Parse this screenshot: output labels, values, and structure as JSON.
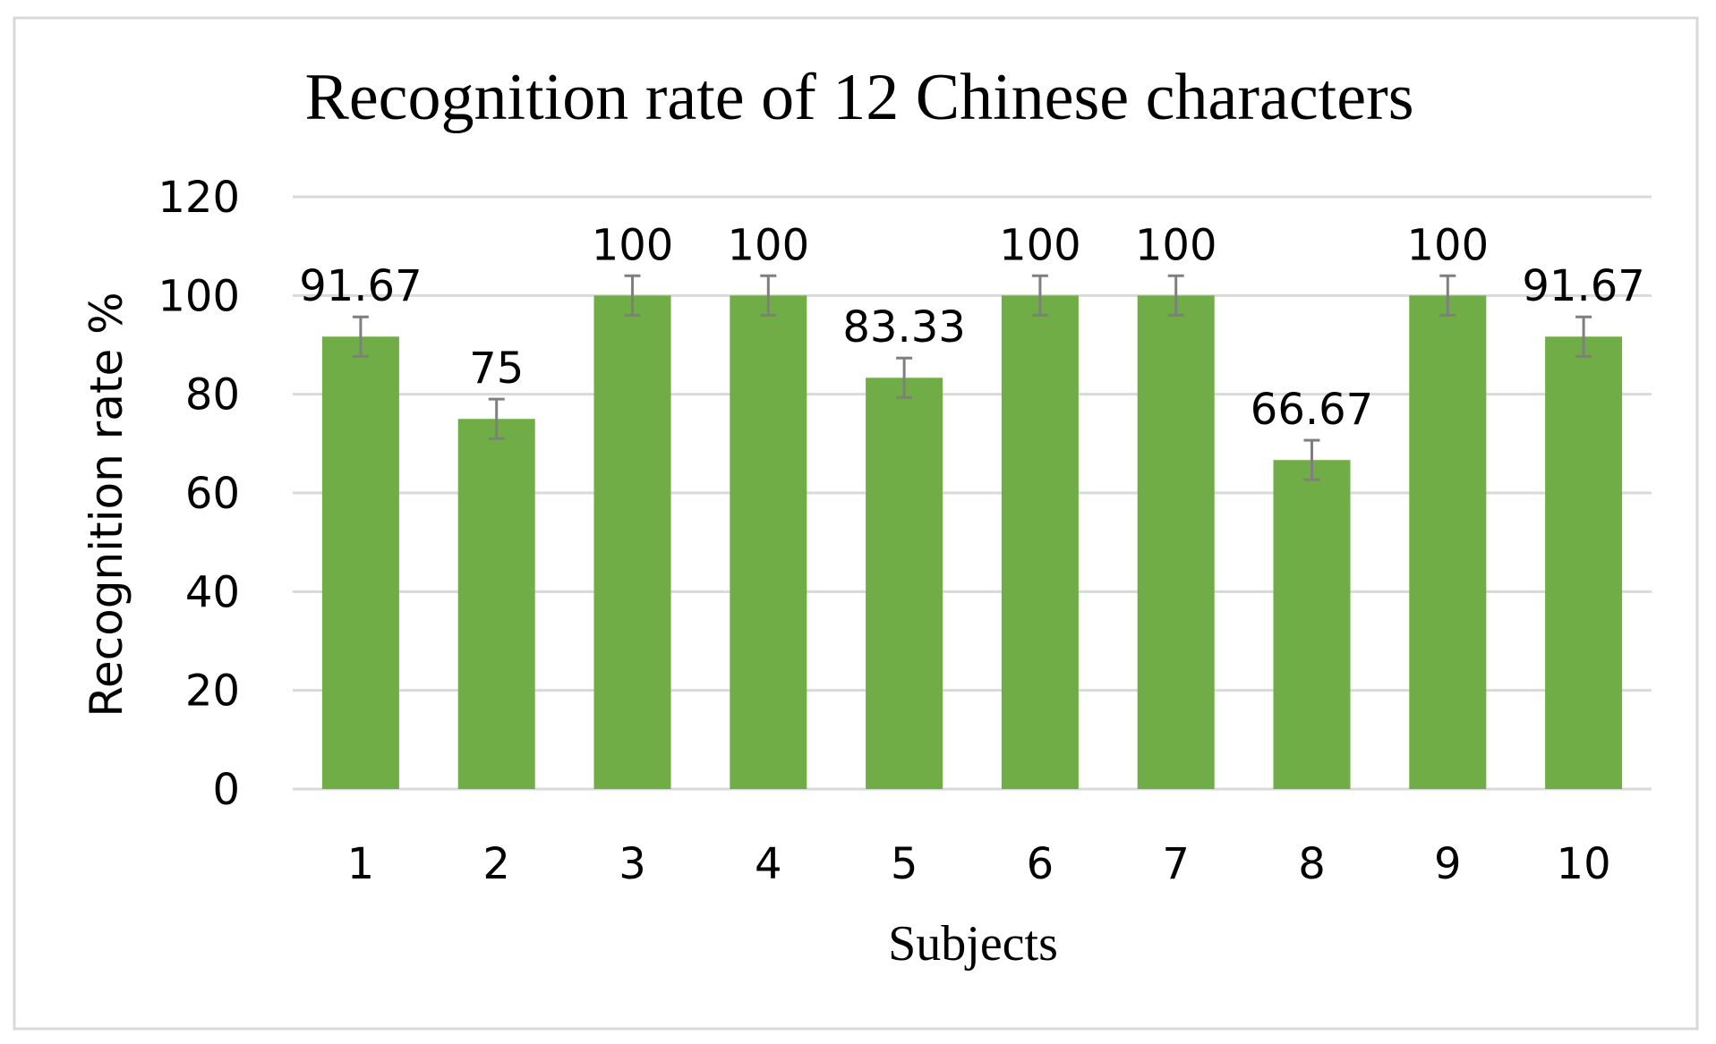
{
  "chart_data": {
    "type": "bar",
    "title": "Recognition rate of 12 Chinese characters",
    "xlabel": "Subjects",
    "ylabel": "Recognition rate %",
    "categories": [
      "1",
      "2",
      "3",
      "4",
      "5",
      "6",
      "7",
      "8",
      "9",
      "10"
    ],
    "values": [
      91.67,
      75,
      100,
      100,
      83.33,
      100,
      100,
      66.67,
      100,
      91.67
    ],
    "data_labels": [
      "91.67",
      "75",
      "100",
      "100",
      "83.33",
      "100",
      "100",
      "66.67",
      "100",
      "91.67"
    ],
    "error": 4,
    "ylim": [
      0,
      120
    ],
    "yticks": [
      0,
      20,
      40,
      60,
      80,
      100,
      120
    ],
    "ytick_labels": [
      "0",
      "20",
      "40",
      "60",
      "80",
      "100",
      "120"
    ],
    "grid": true,
    "legend": "none",
    "colors": {
      "bar": "#70ad47",
      "error_bar": "#7f7f7f",
      "gridline": "#d9d9d9",
      "border": "#d9d9d9"
    }
  }
}
